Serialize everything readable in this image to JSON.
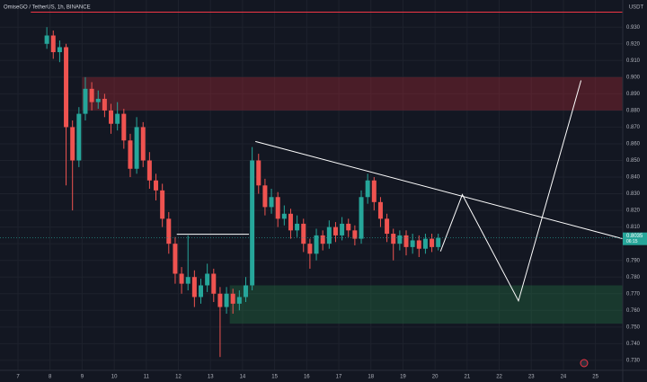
{
  "chart_data": {
    "type": "candlestick",
    "title": "OmiseGO / TetherUS, 1h, BINANCE",
    "currency": "USDT",
    "last_price_label": "0.8035",
    "countdown": "06:15",
    "up_color": "#26a69a",
    "down_color": "#ef5350",
    "xlim": [
      6.44,
      25.85
    ],
    "xticks": [
      7,
      8,
      9,
      10,
      11,
      12,
      13,
      14,
      15,
      16,
      17,
      18,
      19,
      20,
      21,
      22,
      23,
      24,
      25
    ],
    "ylim": [
      0.724,
      0.942
    ],
    "yticks": [
      {
        "value": 0.93,
        "label": "0.930"
      },
      {
        "value": 0.92,
        "label": "0.920"
      },
      {
        "value": 0.91,
        "label": "0.910"
      },
      {
        "value": 0.9,
        "label": "0.900"
      },
      {
        "value": 0.89,
        "label": "0.890"
      },
      {
        "value": 0.88,
        "label": "0.880"
      },
      {
        "value": 0.87,
        "label": "0.870"
      },
      {
        "value": 0.86,
        "label": "0.860"
      },
      {
        "value": 0.85,
        "label": "0.850"
      },
      {
        "value": 0.84,
        "label": "0.840"
      },
      {
        "value": 0.83,
        "label": "0.830"
      },
      {
        "value": 0.82,
        "label": "0.820"
      },
      {
        "value": 0.81,
        "label": "0.810"
      },
      {
        "value": 0.8,
        "label": "0.800"
      },
      {
        "value": 0.79,
        "label": "0.790"
      },
      {
        "value": 0.78,
        "label": "0.780"
      },
      {
        "value": 0.77,
        "label": "0.770"
      },
      {
        "value": 0.76,
        "label": "0.760"
      },
      {
        "value": 0.75,
        "label": "0.750"
      },
      {
        "value": 0.74,
        "label": "0.740"
      },
      {
        "value": 0.73,
        "label": "0.730"
      }
    ],
    "grid": true,
    "x": [
      7.9,
      8.1,
      8.3,
      8.5,
      8.7,
      8.9,
      9.1,
      9.3,
      9.5,
      9.7,
      9.9,
      10.1,
      10.3,
      10.5,
      10.7,
      10.9,
      11.1,
      11.3,
      11.5,
      11.7,
      11.9,
      12.1,
      12.3,
      12.5,
      12.7,
      12.9,
      13.1,
      13.3,
      13.5,
      13.7,
      13.9,
      14.1,
      14.3,
      14.5,
      14.7,
      14.9,
      15.1,
      15.3,
      15.5,
      15.7,
      15.9,
      16.1,
      16.3,
      16.5,
      16.7,
      16.9,
      17.1,
      17.3,
      17.5,
      17.7,
      17.9,
      18.1,
      18.3,
      18.5,
      18.7,
      18.9,
      19.1,
      19.3,
      19.5,
      19.7,
      19.9,
      20.1
    ],
    "open": [
      0.92,
      0.925,
      0.915,
      0.918,
      0.87,
      0.85,
      0.878,
      0.893,
      0.885,
      0.887,
      0.88,
      0.872,
      0.878,
      0.862,
      0.845,
      0.87,
      0.85,
      0.838,
      0.832,
      0.815,
      0.8,
      0.782,
      0.776,
      0.78,
      0.768,
      0.775,
      0.782,
      0.77,
      0.762,
      0.77,
      0.764,
      0.768,
      0.775,
      0.85,
      0.835,
      0.822,
      0.828,
      0.815,
      0.818,
      0.808,
      0.812,
      0.8,
      0.794,
      0.805,
      0.8,
      0.81,
      0.805,
      0.812,
      0.808,
      0.803,
      0.828,
      0.838,
      0.825,
      0.815,
      0.806,
      0.8,
      0.805,
      0.798,
      0.802,
      0.797,
      0.803,
      0.798
    ],
    "high": [
      0.93,
      0.928,
      0.922,
      0.92,
      0.874,
      0.882,
      0.9,
      0.897,
      0.892,
      0.89,
      0.884,
      0.885,
      0.881,
      0.866,
      0.876,
      0.873,
      0.855,
      0.842,
      0.836,
      0.819,
      0.804,
      0.786,
      0.805,
      0.784,
      0.779,
      0.788,
      0.785,
      0.774,
      0.774,
      0.773,
      0.772,
      0.78,
      0.858,
      0.854,
      0.839,
      0.833,
      0.831,
      0.823,
      0.821,
      0.817,
      0.815,
      0.803,
      0.809,
      0.808,
      0.814,
      0.813,
      0.816,
      0.815,
      0.811,
      0.832,
      0.842,
      0.84,
      0.828,
      0.818,
      0.809,
      0.808,
      0.808,
      0.806,
      0.805,
      0.806,
      0.806,
      0.806
    ],
    "low": [
      0.917,
      0.911,
      0.909,
      0.835,
      0.82,
      0.846,
      0.874,
      0.88,
      0.881,
      0.876,
      0.866,
      0.868,
      0.857,
      0.84,
      0.842,
      0.846,
      0.833,
      0.826,
      0.81,
      0.794,
      0.776,
      0.77,
      0.772,
      0.762,
      0.764,
      0.771,
      0.765,
      0.732,
      0.758,
      0.758,
      0.76,
      0.765,
      0.772,
      0.83,
      0.817,
      0.818,
      0.81,
      0.811,
      0.803,
      0.804,
      0.795,
      0.785,
      0.79,
      0.796,
      0.797,
      0.801,
      0.802,
      0.804,
      0.799,
      0.8,
      0.824,
      0.82,
      0.81,
      0.801,
      0.79,
      0.796,
      0.793,
      0.794,
      0.792,
      0.794,
      0.795,
      0.796
    ],
    "close": [
      0.925,
      0.915,
      0.918,
      0.87,
      0.85,
      0.878,
      0.893,
      0.885,
      0.887,
      0.88,
      0.872,
      0.878,
      0.862,
      0.845,
      0.87,
      0.85,
      0.838,
      0.832,
      0.815,
      0.8,
      0.782,
      0.776,
      0.78,
      0.768,
      0.775,
      0.782,
      0.77,
      0.762,
      0.77,
      0.764,
      0.768,
      0.775,
      0.85,
      0.835,
      0.822,
      0.828,
      0.815,
      0.818,
      0.808,
      0.812,
      0.8,
      0.794,
      0.805,
      0.8,
      0.81,
      0.805,
      0.812,
      0.808,
      0.803,
      0.828,
      0.838,
      0.825,
      0.815,
      0.806,
      0.8,
      0.805,
      0.798,
      0.802,
      0.797,
      0.803,
      0.798,
      0.8035
    ],
    "zones": [
      {
        "x0": 9.0,
        "y0": 0.88,
        "y1": 0.9,
        "color": "rgba(178,40,51,0.35)"
      },
      {
        "x0": 13.6,
        "y0": 0.752,
        "y1": 0.775,
        "color": "rgba(38,120,70,0.35)"
      }
    ],
    "drawings": [
      {
        "x": [
          7.4,
          25.85
        ],
        "y": [
          0.939,
          0.939
        ],
        "color": "#f23645"
      },
      {
        "x": [
          11.95,
          14.2
        ],
        "y": [
          0.8057,
          0.8057
        ],
        "color": "#ffffff"
      },
      {
        "x": [
          14.4,
          25.85
        ],
        "y": [
          0.8614,
          0.803
        ],
        "color": "#ffffff"
      },
      {
        "x": [
          20.17,
          20.85,
          22.6,
          24.55
        ],
        "y": [
          0.7954,
          0.8295,
          0.7657,
          0.898
        ],
        "color": "#ffffff"
      }
    ]
  }
}
